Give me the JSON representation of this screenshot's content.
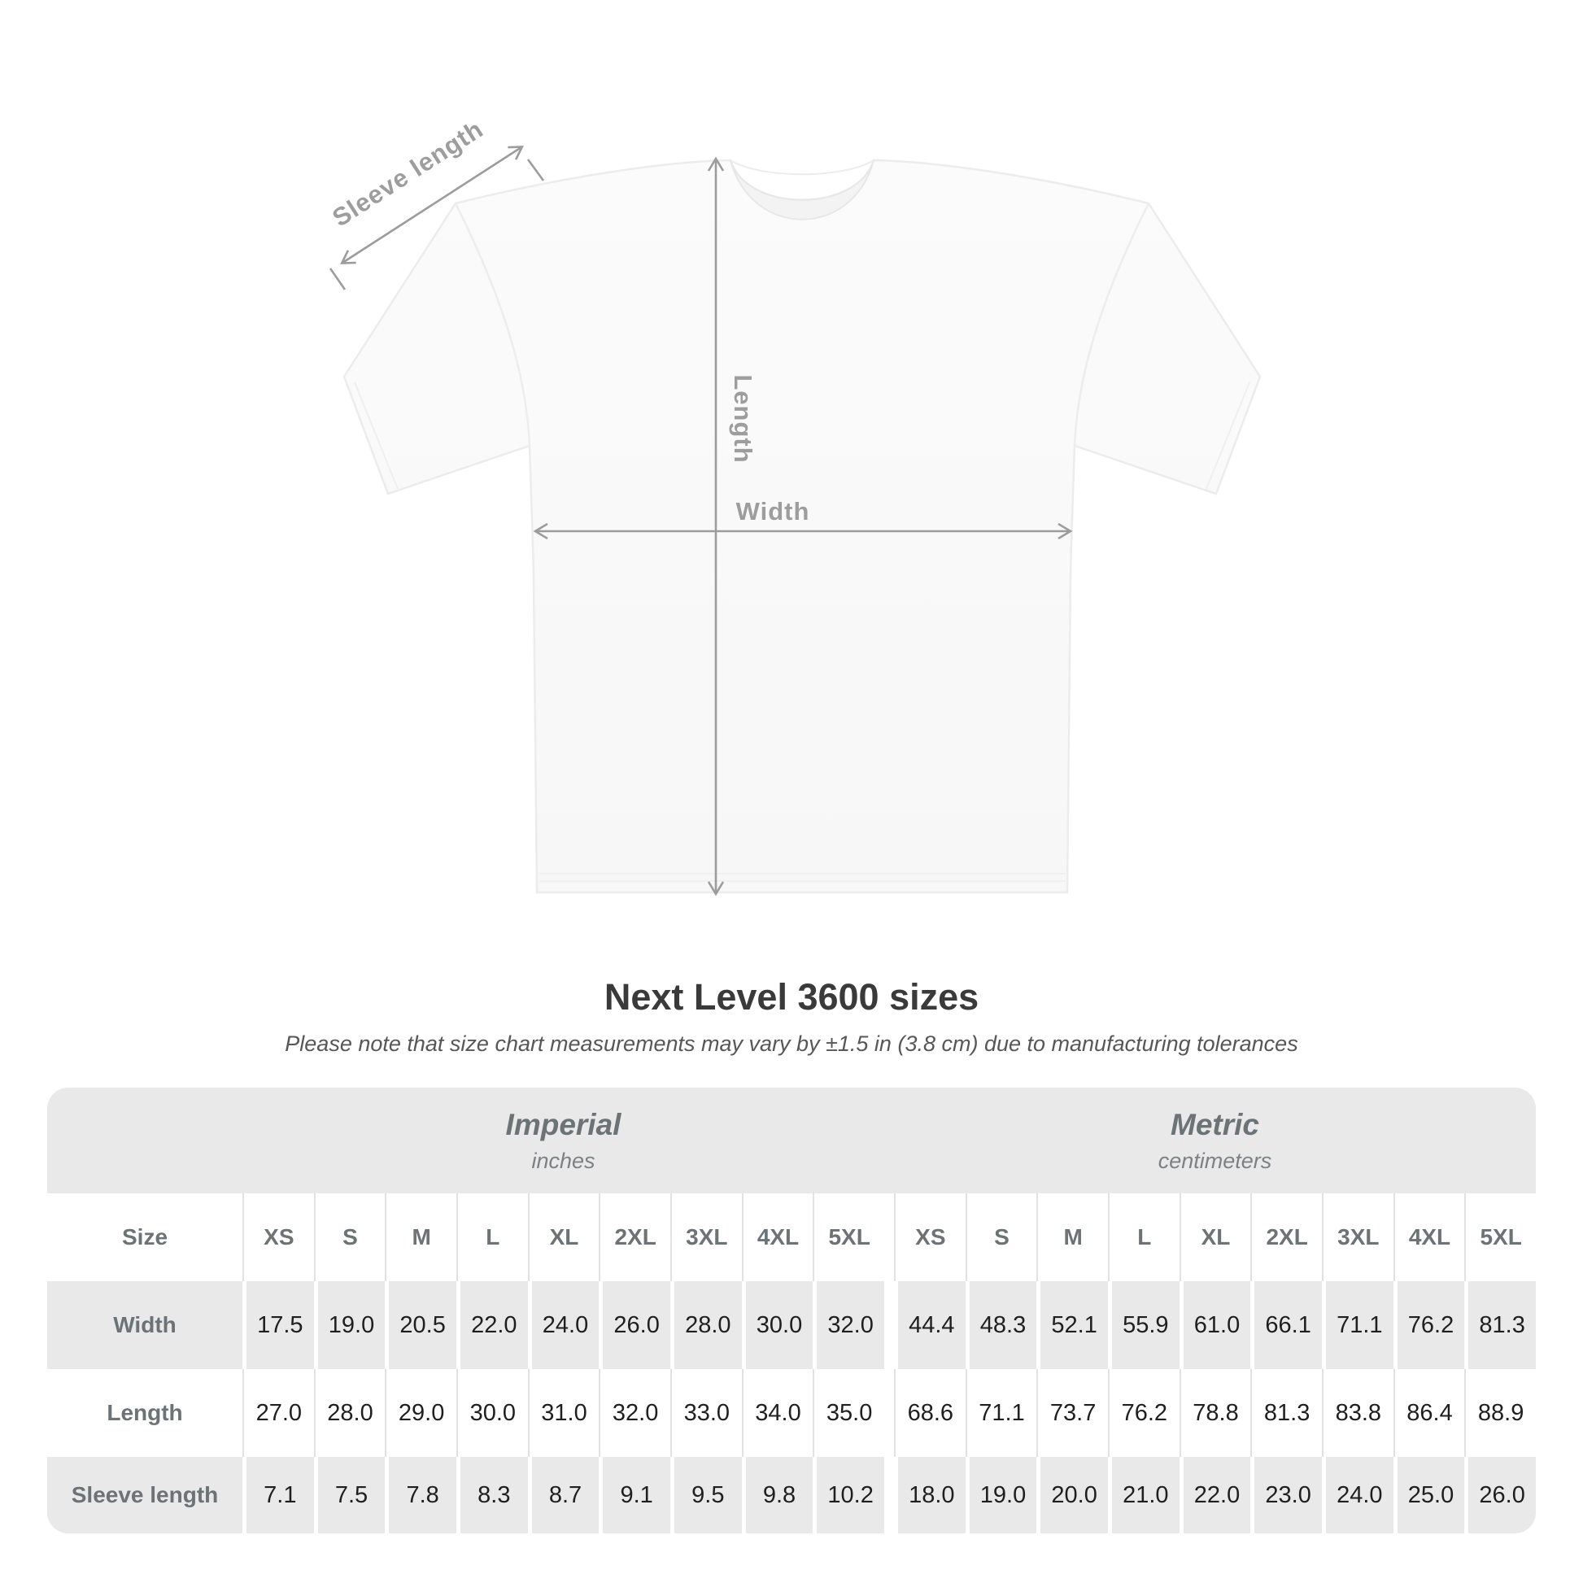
{
  "diagram": {
    "sleeve_label": "Sleeve length",
    "length_label": "Length",
    "width_label": "Width"
  },
  "title": "Next Level 3600 sizes",
  "subtitle": "Please note that size chart measurements may vary by ±1.5 in (3.8 cm) due to manufacturing tolerances",
  "table": {
    "size_label": "Size",
    "sizes": [
      "XS",
      "S",
      "M",
      "L",
      "XL",
      "2XL",
      "3XL",
      "4XL",
      "5XL"
    ],
    "sections": [
      {
        "title": "Imperial",
        "unit": "inches"
      },
      {
        "title": "Metric",
        "unit": "centimeters"
      }
    ],
    "rows": [
      {
        "label": "Width",
        "imperial": [
          "17.5",
          "19.0",
          "20.5",
          "22.0",
          "24.0",
          "26.0",
          "28.0",
          "30.0",
          "32.0"
        ],
        "metric": [
          "44.4",
          "48.3",
          "52.1",
          "55.9",
          "61.0",
          "66.1",
          "71.1",
          "76.2",
          "81.3"
        ]
      },
      {
        "label": "Length",
        "imperial": [
          "27.0",
          "28.0",
          "29.0",
          "30.0",
          "31.0",
          "32.0",
          "33.0",
          "34.0",
          "35.0"
        ],
        "metric": [
          "68.6",
          "71.1",
          "73.7",
          "76.2",
          "78.8",
          "81.3",
          "83.8",
          "86.4",
          "88.9"
        ]
      },
      {
        "label": "Sleeve length",
        "imperial": [
          "7.1",
          "7.5",
          "7.8",
          "8.3",
          "8.7",
          "9.1",
          "9.5",
          "9.8",
          "10.2"
        ],
        "metric": [
          "18.0",
          "19.0",
          "20.0",
          "21.0",
          "22.0",
          "23.0",
          "24.0",
          "25.0",
          "26.0"
        ]
      }
    ]
  },
  "chart_data": {
    "type": "table",
    "title": "Next Level 3600 sizes",
    "note": "Measurements may vary by ±1.5 in (3.8 cm) due to manufacturing tolerances",
    "sizes": [
      "XS",
      "S",
      "M",
      "L",
      "XL",
      "2XL",
      "3XL",
      "4XL",
      "5XL"
    ],
    "units": [
      "inches",
      "centimeters"
    ],
    "measurements": {
      "inches": {
        "Width": [
          17.5,
          19.0,
          20.5,
          22.0,
          24.0,
          26.0,
          28.0,
          30.0,
          32.0
        ],
        "Length": [
          27.0,
          28.0,
          29.0,
          30.0,
          31.0,
          32.0,
          33.0,
          34.0,
          35.0
        ],
        "Sleeve length": [
          7.1,
          7.5,
          7.8,
          8.3,
          8.7,
          9.1,
          9.5,
          9.8,
          10.2
        ]
      },
      "centimeters": {
        "Width": [
          44.4,
          48.3,
          52.1,
          55.9,
          61.0,
          66.1,
          71.1,
          76.2,
          81.3
        ],
        "Length": [
          68.6,
          71.1,
          73.7,
          76.2,
          78.8,
          81.3,
          83.8,
          86.4,
          88.9
        ],
        "Sleeve length": [
          18.0,
          19.0,
          20.0,
          21.0,
          22.0,
          23.0,
          24.0,
          25.0,
          26.0
        ]
      }
    }
  },
  "colors": {
    "dimension_gray": "#9d9d9d",
    "title_dark": "#3a3a3a",
    "card_gray": "#e9e9e9",
    "header_slate": "#6b7376",
    "value_dark": "#1f1f1f"
  }
}
